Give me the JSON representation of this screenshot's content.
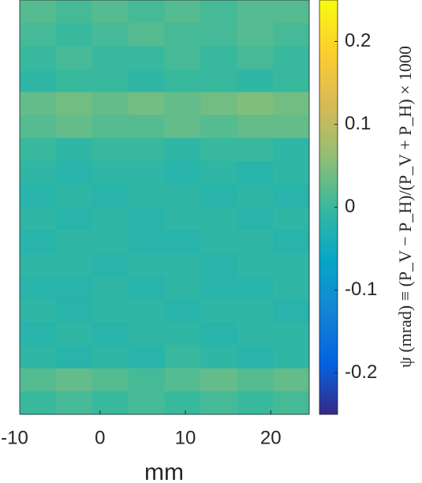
{
  "chart_data": {
    "type": "heatmap",
    "xlabel": "mm",
    "colorbar_label": "ψ (mrad) ≡ (P_V − P_H)/(P_V + P_H) × 1000",
    "colormap": "parula",
    "xlim": [
      -9.4,
      24.5
    ],
    "xticks": [
      -10,
      0,
      10,
      20
    ],
    "clim": [
      -0.25,
      0.25
    ],
    "cticks": [
      -0.2,
      -0.1,
      0,
      0.1,
      0.2
    ],
    "z": [
      [
        0.02,
        0.01,
        0.02,
        0.01,
        0.02,
        0.01,
        0.02,
        0.02
      ],
      [
        0.01,
        0.0,
        0.01,
        0.02,
        0.01,
        0.01,
        0.02,
        0.01
      ],
      [
        0.0,
        0.01,
        0.0,
        0.0,
        0.01,
        0.0,
        0.01,
        0.0
      ],
      [
        -0.01,
        0.0,
        0.0,
        -0.01,
        0.0,
        0.0,
        -0.01,
        0.0
      ],
      [
        0.03,
        0.04,
        0.03,
        0.04,
        0.03,
        0.04,
        0.05,
        0.04
      ],
      [
        0.02,
        0.03,
        0.02,
        0.02,
        0.03,
        0.02,
        0.03,
        0.03
      ],
      [
        0.0,
        -0.01,
        0.0,
        0.0,
        -0.01,
        0.0,
        0.0,
        -0.01
      ],
      [
        -0.01,
        -0.02,
        -0.01,
        -0.01,
        -0.02,
        -0.01,
        -0.02,
        -0.01
      ],
      [
        -0.02,
        -0.01,
        -0.02,
        -0.01,
        -0.01,
        -0.02,
        -0.01,
        -0.02
      ],
      [
        -0.01,
        -0.02,
        -0.01,
        -0.02,
        -0.01,
        -0.01,
        -0.02,
        -0.01
      ],
      [
        -0.02,
        -0.01,
        -0.01,
        -0.02,
        -0.02,
        -0.01,
        -0.01,
        -0.02
      ],
      [
        -0.01,
        -0.01,
        -0.02,
        -0.01,
        -0.01,
        -0.02,
        -0.01,
        -0.01
      ],
      [
        -0.02,
        -0.02,
        -0.01,
        -0.02,
        -0.01,
        -0.02,
        -0.02,
        -0.01
      ],
      [
        -0.01,
        -0.02,
        -0.01,
        -0.01,
        -0.02,
        -0.01,
        -0.01,
        -0.02
      ],
      [
        -0.02,
        -0.01,
        -0.02,
        -0.01,
        -0.01,
        -0.02,
        -0.01,
        -0.01
      ],
      [
        -0.01,
        -0.02,
        -0.01,
        -0.02,
        0.0,
        -0.01,
        -0.02,
        -0.01
      ],
      [
        0.02,
        0.03,
        0.02,
        0.01,
        0.02,
        0.03,
        0.02,
        0.03
      ],
      [
        0.0,
        0.01,
        0.0,
        0.01,
        0.0,
        0.01,
        0.0,
        0.01
      ]
    ]
  }
}
